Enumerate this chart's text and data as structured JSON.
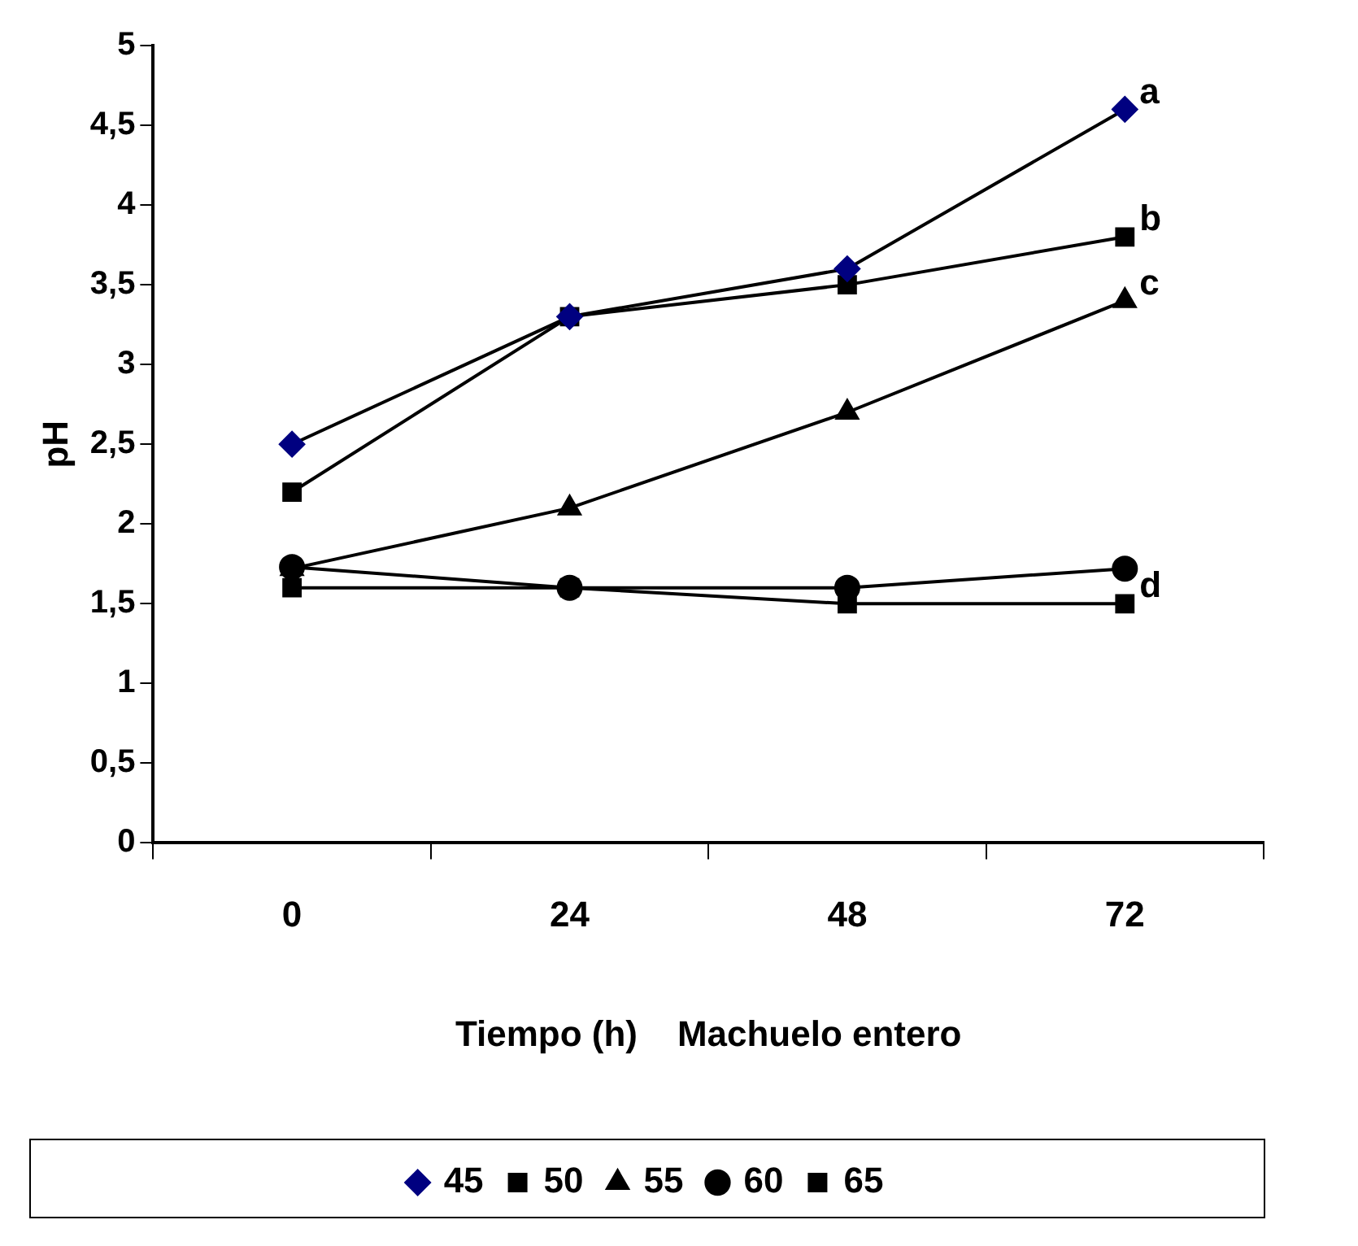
{
  "chart_data": {
    "type": "line",
    "xlabel": "Tiempo (h)    Machuelo entero",
    "ylabel": "pH",
    "categories": [
      "0",
      "24",
      "48",
      "72"
    ],
    "series": [
      {
        "name": "45",
        "color": "#000080",
        "marker": "diamond",
        "values": [
          2.5,
          3.3,
          3.6,
          4.6
        ]
      },
      {
        "name": "50",
        "color": "#000000",
        "marker": "square",
        "values": [
          2.2,
          3.3,
          3.5,
          3.8
        ]
      },
      {
        "name": "55",
        "color": "#000000",
        "marker": "triangle",
        "values": [
          1.72,
          2.1,
          2.7,
          3.4
        ]
      },
      {
        "name": "60",
        "color": "#000000",
        "marker": "circle",
        "values": [
          1.73,
          1.6,
          1.6,
          1.72
        ]
      },
      {
        "name": "65",
        "color": "#000000",
        "marker": "square",
        "values": [
          1.6,
          1.6,
          1.5,
          1.5
        ]
      }
    ],
    "ylim": [
      0,
      5
    ],
    "yticks": [
      0,
      {
        "value": 0.5,
        "label": "0,5"
      },
      1,
      {
        "value": 1.5,
        "label": "1,5"
      },
      2,
      {
        "value": 2.5,
        "label": "2,5"
      },
      3,
      {
        "value": 3.5,
        "label": "3,5"
      },
      4,
      {
        "value": 4.5,
        "label": "4,5"
      },
      5
    ],
    "annotations": [
      {
        "text": "a",
        "x": "72",
        "y": 4.6
      },
      {
        "text": "b",
        "x": "72",
        "y": 3.8
      },
      {
        "text": "c",
        "x": "72",
        "y": 3.4
      },
      {
        "text": "d",
        "x": "72",
        "y": 1.5
      }
    ],
    "grid": false,
    "legend": "bottom",
    "line_style": "solid"
  }
}
